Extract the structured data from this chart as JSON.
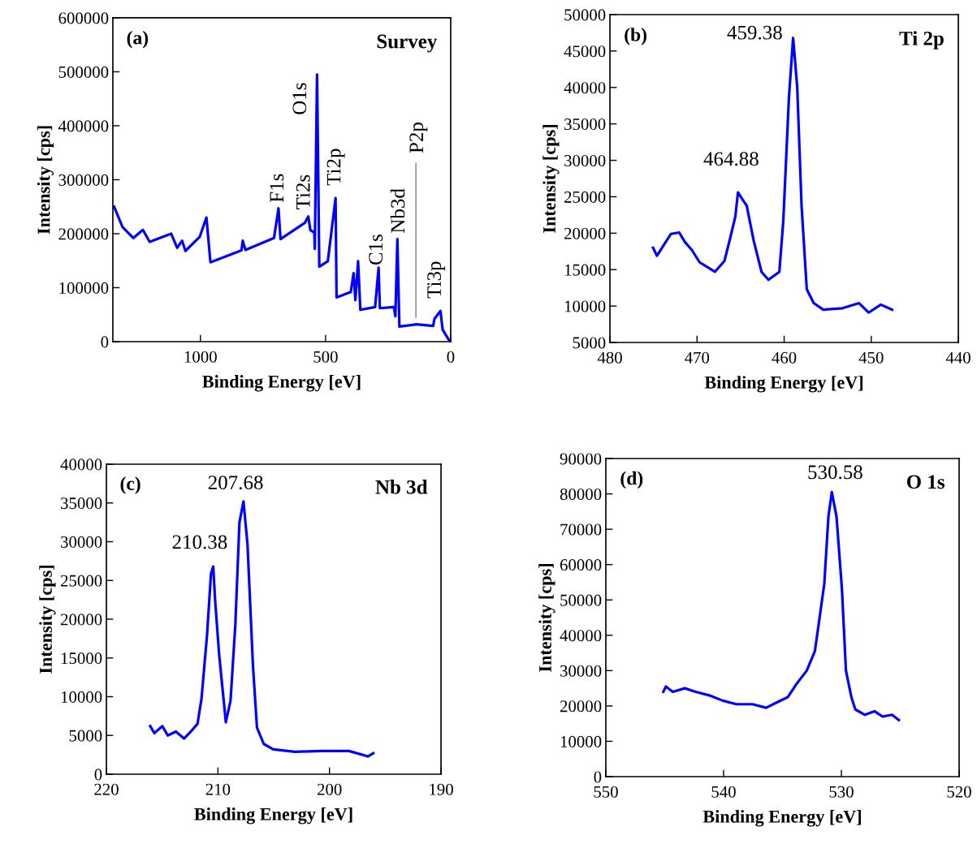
{
  "chart_data": [
    {
      "type": "line",
      "xlabel": "Binding Energy [eV]",
      "ylabel": "Intensity [cps]",
      "xlim": [
        1350,
        0
      ],
      "xticks": [
        1000,
        500,
        0
      ],
      "ylim": [
        0,
        600000
      ],
      "yticks": [
        0,
        100000,
        200000,
        300000,
        400000,
        500000,
        600000
      ],
      "grid": false,
      "legend": false,
      "annotations": [
        "(a)",
        "Survey",
        {
          "text": "F1s",
          "x": 688,
          "y": 247000
        },
        {
          "text": "Ti2s",
          "x": 569,
          "y": 232000
        },
        {
          "text": "O1s",
          "x": 534,
          "y": 495000
        },
        {
          "text": "Ti2p",
          "x": 460,
          "y": 266000
        },
        {
          "text": "C1s",
          "x": 288,
          "y": 137000
        },
        {
          "text": "Nb3d",
          "x": 213,
          "y": 190000
        },
        {
          "text": "P2p",
          "x": 139,
          "y": 330000
        },
        {
          "text": "Ti3p",
          "x": 41,
          "y": 57000
        }
      ],
      "series": [
        {
          "color": "#0000ff",
          "x": [
            1345,
            1311,
            1268,
            1230,
            1203,
            1117,
            1093,
            1073,
            1060,
            1003,
            976,
            960,
            836,
            831,
            820,
            706,
            688,
            680,
            583,
            569,
            561,
            545,
            543,
            534,
            525,
            491,
            460,
            456,
            399,
            388,
            381,
            370,
            361,
            302,
            288,
            283,
            227,
            221,
            213,
            205,
            137,
            70,
            65,
            41,
            32,
            3
          ],
          "values": [
            250000,
            212000,
            192000,
            207000,
            185000,
            200000,
            174000,
            187000,
            168000,
            194000,
            230000,
            147000,
            169000,
            187000,
            170000,
            192000,
            247000,
            190000,
            220000,
            232000,
            207000,
            202000,
            172000,
            495000,
            139000,
            149000,
            266000,
            82000,
            92000,
            127000,
            77000,
            149000,
            59000,
            64000,
            137000,
            62000,
            64000,
            47000,
            190000,
            28000,
            32000,
            29000,
            42000,
            57000,
            22000,
            0
          ]
        },
        {
          "type": "line",
          "color": "#808080",
          "x": [
            139,
            139
          ],
          "values": [
            45000,
            330000
          ]
        }
      ]
    },
    {
      "type": "line",
      "xlabel": "Binding Energy [eV]",
      "ylabel": "Intensity [cps]",
      "xlim": [
        480,
        440
      ],
      "xticks": [
        480,
        470,
        460,
        450,
        440
      ],
      "ylim": [
        5000,
        50000
      ],
      "yticks": [
        5000,
        10000,
        15000,
        20000,
        25000,
        30000,
        35000,
        40000,
        45000,
        50000
      ],
      "grid": false,
      "legend": false,
      "annotations": [
        "(b)",
        "Ti 2p",
        {
          "text": "459.38",
          "x": 458.97,
          "y": 46800
        },
        {
          "text": "464.88",
          "x": 465.3,
          "y": 25600
        }
      ],
      "series": [
        {
          "color": "#0000ff",
          "x": [
            475.05,
            474.6,
            473.8,
            473.0,
            472.05,
            471.4,
            470.6,
            469.7,
            467.95,
            466.85,
            466.2,
            465.6,
            465.3,
            464.65,
            464.3,
            463.5,
            462.6,
            461.8,
            460.55,
            460.1,
            459.45,
            458.97,
            458.5,
            458.0,
            457.4,
            456.6,
            455.5,
            453.3,
            451.4,
            450.3,
            448.9,
            447.6
          ],
          "values": [
            18000,
            16900,
            18400,
            19900,
            20100,
            18800,
            17700,
            16000,
            14700,
            16200,
            19300,
            22300,
            25600,
            24400,
            23800,
            19000,
            14700,
            13600,
            14700,
            21600,
            38600,
            46800,
            40100,
            23800,
            12300,
            10400,
            9500,
            9700,
            10400,
            9100,
            10200,
            9500
          ]
        }
      ]
    },
    {
      "type": "line",
      "xlabel": "Binding Energy [eV]",
      "ylabel": "Intensity [cps]",
      "xlim": [
        220,
        190
      ],
      "xticks": [
        220,
        210,
        200,
        190
      ],
      "ylim": [
        0,
        40000
      ],
      "yticks": [
        0,
        5000,
        10000,
        15000,
        20000,
        25000,
        30000,
        35000,
        40000
      ],
      "grid": false,
      "legend": false,
      "annotations": [
        "(c)",
        "Nb 3d",
        {
          "text": "207.68",
          "x": 207.71,
          "y": 35200
        },
        {
          "text": "210.38",
          "x": 210.42,
          "y": 26800
        }
      ],
      "series": [
        {
          "color": "#0000ff",
          "x": [
            216.07,
            215.7,
            214.98,
            214.5,
            213.77,
            213.04,
            212.31,
            211.83,
            211.47,
            210.98,
            210.62,
            210.42,
            210.25,
            209.89,
            209.29,
            208.87,
            208.44,
            208.07,
            207.71,
            207.35,
            206.86,
            206.5,
            205.89,
            205.04,
            203.1,
            200.68,
            198.25,
            196.56,
            196.07
          ],
          "values": [
            6200,
            5300,
            6200,
            5000,
            5500,
            4600,
            5700,
            6500,
            9800,
            17900,
            25900,
            26800,
            22400,
            15400,
            6700,
            9500,
            19300,
            32500,
            35200,
            29700,
            14000,
            6000,
            3900,
            3200,
            2900,
            3000,
            3000,
            2300,
            2700
          ]
        }
      ]
    },
    {
      "type": "line",
      "xlabel": "Binding Energy [eV]",
      "ylabel": "Intensity [cps]",
      "xlim": [
        550,
        520
      ],
      "xticks": [
        550,
        540,
        530,
        520
      ],
      "ylim": [
        0,
        90000
      ],
      "yticks": [
        0,
        10000,
        20000,
        30000,
        40000,
        50000,
        60000,
        70000,
        80000,
        90000
      ],
      "grid": false,
      "legend": false,
      "annotations": [
        "(d)",
        "O 1s",
        {
          "text": "530.58",
          "x": 530.81,
          "y": 80500
        }
      ],
      "series": [
        {
          "color": "#0000ff",
          "x": [
            545.12,
            544.9,
            544.32,
            543.29,
            542.37,
            541.22,
            540.07,
            538.92,
            537.54,
            536.39,
            535.47,
            534.55,
            533.86,
            532.94,
            532.25,
            531.91,
            531.45,
            531.1,
            530.81,
            530.41,
            529.95,
            529.61,
            529.15,
            528.81,
            528.0,
            527.19,
            526.5,
            525.7,
            525.12
          ],
          "values": [
            24000,
            25500,
            24000,
            25000,
            24000,
            23000,
            21500,
            20500,
            20500,
            19500,
            21000,
            22500,
            26000,
            30000,
            35500,
            43500,
            54500,
            73500,
            80500,
            73500,
            53000,
            30000,
            22500,
            19000,
            17500,
            18500,
            17000,
            17500,
            16000
          ]
        }
      ]
    }
  ]
}
